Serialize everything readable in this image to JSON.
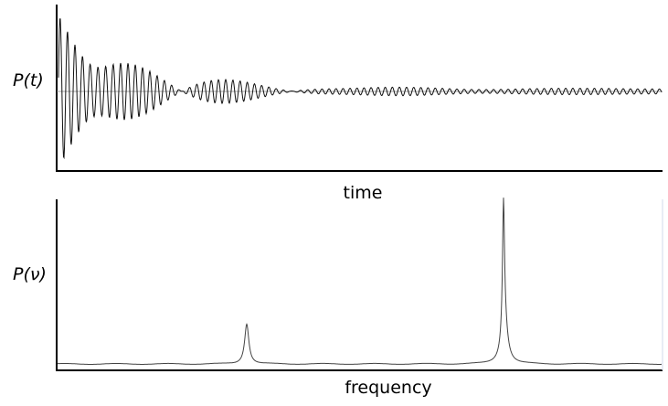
{
  "top_plot": {
    "y_label": "P(t)",
    "x_label": "time"
  },
  "bottom_plot": {
    "y_label": "P(ν)",
    "x_label": "frequency"
  }
}
